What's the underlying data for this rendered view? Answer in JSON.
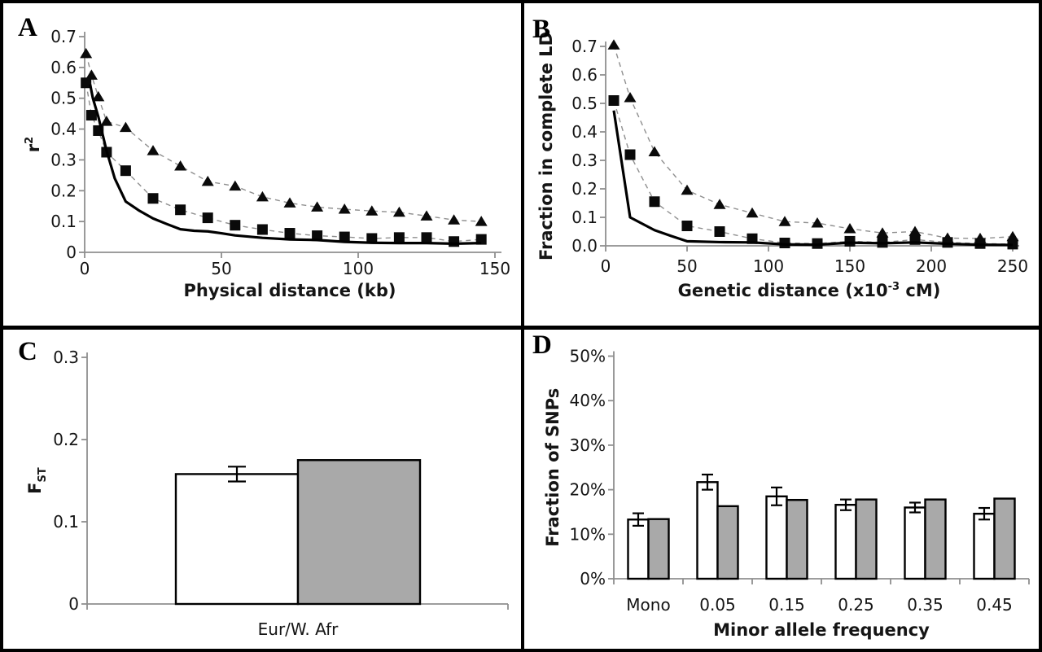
{
  "figure": {
    "background": "#ffffff",
    "border_color": "#000000",
    "axis_color": "#8f8f8f",
    "dash_color": "#8f8f8f",
    "marker_color": "#0a0a0a",
    "text_color": "#151515",
    "bar_white": "#ffffff",
    "bar_gray": "#a9a9a9",
    "bar_outline": "#000000"
  },
  "chart_data": [
    {
      "panel": "A",
      "type": "line",
      "xlabel": "Physical distance (kb)",
      "xlabel_parts": [
        {
          "t": "Physical distance (kb)"
        }
      ],
      "ylabel": "r2",
      "ylabel_parts": [
        {
          "t": "r"
        },
        {
          "t": "2",
          "sup": true
        }
      ],
      "xlim": [
        0,
        150
      ],
      "ylim": [
        0,
        0.7
      ],
      "grid": false,
      "legend": "none",
      "xticks": [
        {
          "v": 0,
          "label": "0"
        },
        {
          "v": 50,
          "label": "50"
        },
        {
          "v": 100,
          "label": "100"
        },
        {
          "v": 150,
          "label": "150"
        }
      ],
      "yticks": [
        {
          "v": 0,
          "label": "0"
        },
        {
          "v": 0.1,
          "label": "0.1"
        },
        {
          "v": 0.2,
          "label": "0.2"
        },
        {
          "v": 0.3,
          "label": "0.3"
        },
        {
          "v": 0.4,
          "label": "0.4"
        },
        {
          "v": 0.5,
          "label": "0.5"
        },
        {
          "v": 0.6,
          "label": "0.6"
        },
        {
          "v": 0.7,
          "label": "0.7"
        }
      ],
      "series": [
        {
          "name": "triangles-dashed",
          "marker": "triangle",
          "line": "dashed",
          "x": [
            0.5,
            2.5,
            5,
            8,
            15,
            25,
            35,
            45,
            55,
            65,
            75,
            85,
            95,
            105,
            115,
            125,
            135,
            145
          ],
          "y": [
            0.645,
            0.575,
            0.505,
            0.425,
            0.405,
            0.33,
            0.28,
            0.23,
            0.215,
            0.18,
            0.16,
            0.147,
            0.14,
            0.134,
            0.13,
            0.118,
            0.105,
            0.1
          ]
        },
        {
          "name": "squares-dashed",
          "marker": "square",
          "line": "dashed",
          "x": [
            0.5,
            2.5,
            5,
            8,
            15,
            25,
            35,
            45,
            55,
            65,
            75,
            85,
            95,
            105,
            115,
            125,
            135,
            145
          ],
          "y": [
            0.55,
            0.445,
            0.395,
            0.325,
            0.265,
            0.175,
            0.138,
            0.112,
            0.088,
            0.074,
            0.062,
            0.054,
            0.05,
            0.045,
            0.048,
            0.048,
            0.035,
            0.042
          ]
        },
        {
          "name": "solid-line",
          "marker": "none",
          "line": "solid",
          "x": [
            2,
            3,
            5,
            8,
            11,
            15,
            20,
            25,
            30,
            35,
            40,
            45,
            50,
            55,
            65,
            75,
            85,
            95,
            105,
            115,
            125,
            135,
            145
          ],
          "y": [
            0.545,
            0.5,
            0.44,
            0.33,
            0.24,
            0.165,
            0.135,
            0.11,
            0.092,
            0.075,
            0.07,
            0.068,
            0.062,
            0.055,
            0.047,
            0.042,
            0.04,
            0.034,
            0.031,
            0.03,
            0.03,
            0.028,
            0.03
          ]
        }
      ]
    },
    {
      "panel": "B",
      "type": "line",
      "xlabel": "Genetic distance (x10-3 cM)",
      "xlabel_parts": [
        {
          "t": "Genetic distance (x10"
        },
        {
          "t": "-3",
          "sup": true
        },
        {
          "t": " cM)"
        }
      ],
      "ylabel": "Fraction in complete LD",
      "ylabel_parts": [
        {
          "t": "Fraction in complete LD"
        }
      ],
      "xlim": [
        0,
        250
      ],
      "ylim": [
        0,
        0.7
      ],
      "grid": false,
      "legend": "none",
      "xticks": [
        {
          "v": 0,
          "label": "0"
        },
        {
          "v": 50,
          "label": "50"
        },
        {
          "v": 100,
          "label": "100"
        },
        {
          "v": 150,
          "label": "150"
        },
        {
          "v": 200,
          "label": "200"
        },
        {
          "v": 250,
          "label": "250"
        }
      ],
      "yticks": [
        {
          "v": 0,
          "label": "0.0"
        },
        {
          "v": 0.1,
          "label": "0.1"
        },
        {
          "v": 0.2,
          "label": "0.2"
        },
        {
          "v": 0.3,
          "label": "0.3"
        },
        {
          "v": 0.4,
          "label": "0.4"
        },
        {
          "v": 0.5,
          "label": "0.5"
        },
        {
          "v": 0.6,
          "label": "0.6"
        },
        {
          "v": 0.7,
          "label": "0.7"
        }
      ],
      "series": [
        {
          "name": "triangles-dashed",
          "marker": "triangle",
          "line": "dashed",
          "x": [
            5,
            15,
            30,
            50,
            70,
            90,
            110,
            130,
            150,
            170,
            190,
            210,
            230,
            250
          ],
          "y": [
            0.705,
            0.52,
            0.33,
            0.195,
            0.145,
            0.115,
            0.085,
            0.08,
            0.06,
            0.045,
            0.05,
            0.027,
            0.026,
            0.032
          ]
        },
        {
          "name": "squares-dashed",
          "marker": "square",
          "line": "dashed",
          "x": [
            5,
            15,
            30,
            50,
            70,
            90,
            110,
            130,
            150,
            170,
            190,
            210,
            230,
            250
          ],
          "y": [
            0.51,
            0.32,
            0.155,
            0.07,
            0.05,
            0.025,
            0.01,
            0.008,
            0.016,
            0.012,
            0.022,
            0.012,
            0.008,
            0.006
          ]
        },
        {
          "name": "solid-line",
          "marker": "none",
          "line": "solid",
          "x": [
            5,
            15,
            20,
            30,
            40,
            50,
            70,
            90,
            110,
            130,
            150,
            170,
            190,
            210,
            230,
            250
          ],
          "y": [
            0.475,
            0.1,
            0.085,
            0.055,
            0.035,
            0.016,
            0.013,
            0.012,
            0.005,
            0.004,
            0.011,
            0.009,
            0.012,
            0.007,
            0.004,
            0.003
          ]
        }
      ]
    },
    {
      "panel": "C",
      "type": "bar",
      "categories": [
        "Eur/W. Afr"
      ],
      "xlabel": "",
      "ylabel": "FST",
      "ylabel_parts": [
        {
          "t": "F"
        },
        {
          "t": "ST",
          "sub": true
        }
      ],
      "ylim": [
        0,
        0.3
      ],
      "grid": false,
      "legend": "none",
      "yticks": [
        {
          "v": 0,
          "label": "0"
        },
        {
          "v": 0.1,
          "label": "0.1"
        },
        {
          "v": 0.2,
          "label": "0.2"
        },
        {
          "v": 0.3,
          "label": "0.3"
        }
      ],
      "series": [
        {
          "name": "white-bars",
          "fill": "white",
          "values": [
            0.158
          ],
          "errors": [
            0.009
          ]
        },
        {
          "name": "gray-bars",
          "fill": "gray",
          "values": [
            0.175
          ]
        }
      ]
    },
    {
      "panel": "D",
      "type": "bar",
      "categories": [
        "Mono",
        "0.05",
        "0.15",
        "0.25",
        "0.35",
        "0.45"
      ],
      "xlabel": "Minor allele frequency",
      "xlabel_parts": [
        {
          "t": "Minor allele frequency"
        }
      ],
      "ylabel": "Fraction of SNPs",
      "ylabel_parts": [
        {
          "t": "Fraction of SNPs"
        }
      ],
      "ylim": [
        0,
        50
      ],
      "grid": false,
      "legend": "none",
      "yticks": [
        {
          "v": 0,
          "label": "0%"
        },
        {
          "v": 10,
          "label": "10%"
        },
        {
          "v": 20,
          "label": "20%"
        },
        {
          "v": 30,
          "label": "30%"
        },
        {
          "v": 40,
          "label": "40%"
        },
        {
          "v": 50,
          "label": "50%"
        }
      ],
      "series": [
        {
          "name": "white-bars",
          "fill": "white",
          "values": [
            13.3,
            21.7,
            18.5,
            16.6,
            16.0,
            14.6
          ],
          "errors": [
            1.4,
            1.7,
            2.0,
            1.2,
            1.1,
            1.3
          ]
        },
        {
          "name": "gray-bars",
          "fill": "gray",
          "values": [
            13.4,
            16.3,
            17.7,
            17.8,
            17.8,
            18.0
          ]
        }
      ]
    }
  ]
}
